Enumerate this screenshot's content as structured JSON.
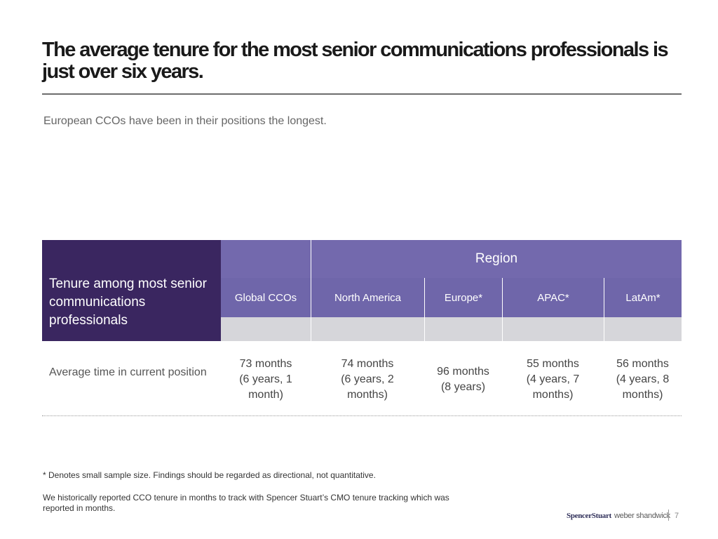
{
  "slide": {
    "title": "The average tenure for the most senior communications professionals is just over six years.",
    "subtitle": "European CCOs have been in their positions the longest."
  },
  "table": {
    "row_header": "Tenure among most senior communications professionals",
    "group_header": "Region",
    "columns": [
      "Global CCOs",
      "North America",
      "Europe*",
      "APAC*",
      "LatAm*"
    ],
    "row": {
      "label": "Average time in current position",
      "values": [
        [
          "73 months",
          "(6 years, 1",
          "month)"
        ],
        [
          "74 months",
          "(6 years, 2",
          "months)"
        ],
        [
          "96 months",
          "(8 years)"
        ],
        [
          "55 months",
          "(4 years, 7",
          "months)"
        ],
        [
          "56 months",
          "(4 years, 8",
          "months)"
        ]
      ]
    },
    "colors": {
      "row_header_bg": "#3a2660",
      "header_bg": "#7369ad",
      "subheader_bg": "#d6d6da"
    }
  },
  "footnotes": {
    "note1": "* Denotes small sample size. Findings should be regarded as directional, not quantitative.",
    "note2": "We historically reported CCO tenure in months to track with Spencer Stuart’s CMO tenure tracking which was reported in months."
  },
  "footer": {
    "logo_left": "SpencerStuart",
    "logo_right": "weber shandwick",
    "page_number": "7"
  }
}
